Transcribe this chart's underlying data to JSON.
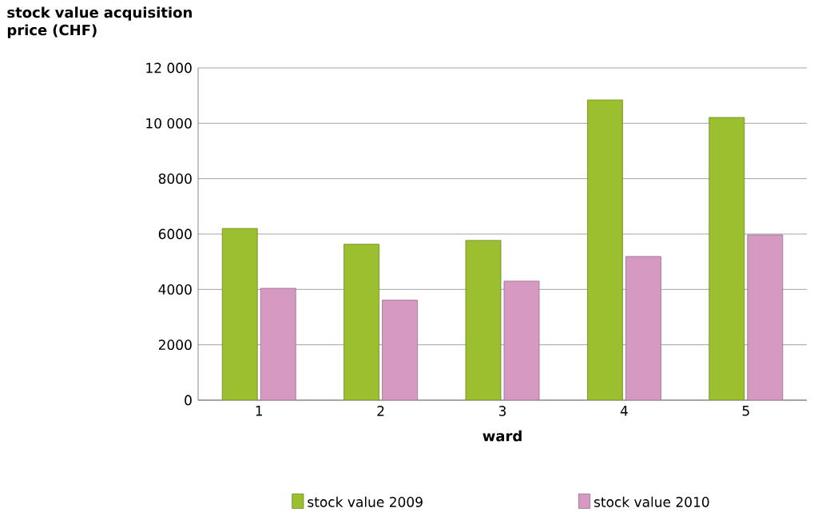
{
  "chart_data": {
    "type": "bar",
    "ylabel": "stock value acquisition price (CHF)",
    "xlabel": "ward",
    "categories": [
      "1",
      "2",
      "3",
      "4",
      "5"
    ],
    "series": [
      {
        "name": "stock value 2009",
        "color": "#9bbf2f",
        "values": [
          6200,
          5630,
          5770,
          10850,
          10210
        ]
      },
      {
        "name": "stock value 2010",
        "color": "#d69ac2",
        "values": [
          4040,
          3610,
          4300,
          5190,
          5970
        ]
      }
    ],
    "ylim": [
      0,
      12000
    ],
    "yticks": [
      0,
      {
        "value": 2000,
        "label": "2000"
      },
      {
        "value": 4000,
        "label": "4000"
      },
      {
        "value": 6000,
        "label": "6000"
      },
      {
        "value": 8000,
        "label": "8000"
      },
      {
        "value": 10000,
        "label": "10 000"
      },
      {
        "value": 12000,
        "label": "12 000"
      }
    ],
    "grid": "y",
    "legend": "bottom"
  }
}
